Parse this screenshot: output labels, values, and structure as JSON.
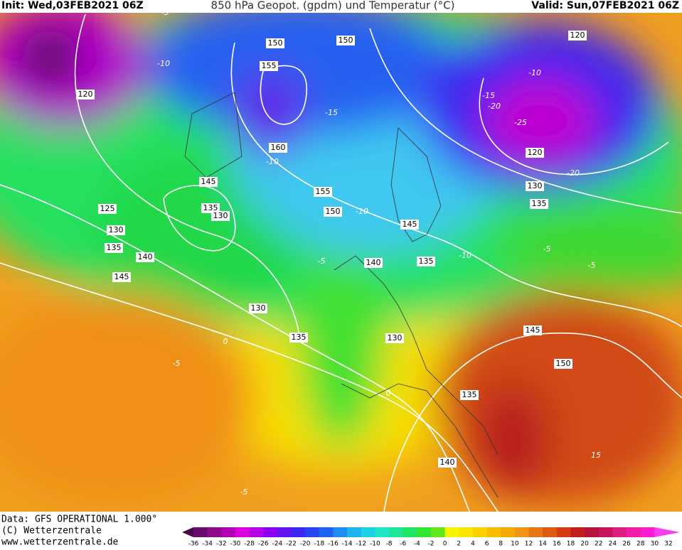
{
  "header": {
    "init": "Init: Wed,03FEB2021 06Z",
    "title": "850 hPa Geopot. (gpdm) und Temperatur (°C)",
    "valid": "Valid: Sun,07FEB2021 06Z"
  },
  "footer": {
    "data": "Data: GFS OPERATIONAL 1.000°",
    "copyright": "(C) Wetterzentrale",
    "url": "www.wetterzentrale.de"
  },
  "geopotential_labels": [
    150,
    150,
    120,
    155,
    160,
    145,
    155,
    150,
    135,
    130,
    125,
    130,
    135,
    140,
    145,
    130,
    135,
    140,
    145,
    135,
    130,
    145,
    150,
    135,
    140,
    120,
    130,
    135,
    120
  ],
  "temperature_labels": [
    -5,
    -10,
    -15,
    -20,
    -25,
    -10,
    -15,
    -20,
    -10,
    -10,
    -5,
    -10,
    -5,
    -5,
    0,
    0,
    -5,
    15,
    -5
  ],
  "colorbar": {
    "ticks": [
      -36,
      -34,
      -32,
      -30,
      -28,
      -26,
      -24,
      -22,
      -20,
      -18,
      -16,
      -14,
      -12,
      -10,
      -8,
      -6,
      -4,
      -2,
      0,
      2,
      4,
      6,
      8,
      10,
      12,
      14,
      16,
      18,
      20,
      22,
      24,
      26,
      28,
      30,
      32
    ],
    "colors": [
      "#4a0a4a",
      "#6a0a6a",
      "#8c0a8c",
      "#b400b4",
      "#dc00dc",
      "#b400e6",
      "#8c00f0",
      "#6414f0",
      "#3c28f0",
      "#2846f0",
      "#1e64f0",
      "#1e8cf0",
      "#1eb4f0",
      "#1ed2e6",
      "#1ee6c8",
      "#1ee696",
      "#1ee664",
      "#32e632",
      "#64e61e",
      "#f5f500",
      "#fae600",
      "#fad200",
      "#fabe00",
      "#f5aa00",
      "#f09614",
      "#e67814",
      "#dc5a14",
      "#d23c14",
      "#c31e1e",
      "#b4143c",
      "#c8145a",
      "#dc1e82",
      "#f01eaa",
      "#fa1ed2",
      "#fa3cf0"
    ]
  }
}
